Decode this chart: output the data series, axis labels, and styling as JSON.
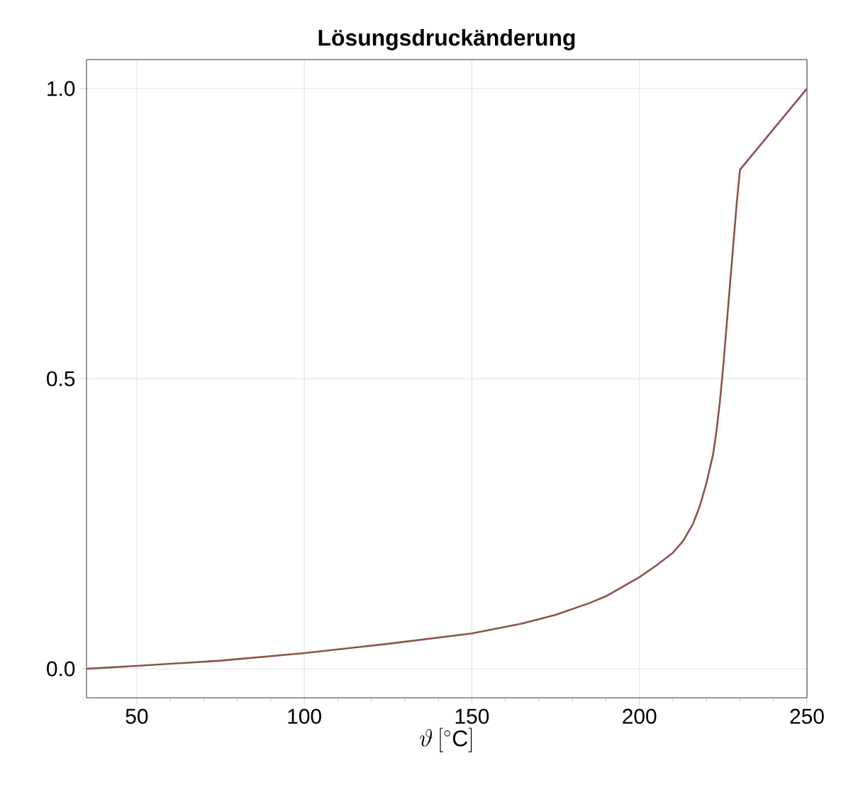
{
  "chart_data": {
    "type": "line",
    "title": "Lösungsdruckänderung",
    "xlabel": "\\vartheta\\,[^\\circ\\mathrm{C}]",
    "x": [
      35,
      50,
      75,
      100,
      125,
      150,
      165,
      175,
      185,
      190,
      200,
      205,
      210,
      213,
      216,
      218,
      220,
      222,
      223,
      224,
      225,
      226,
      227,
      228,
      229,
      230,
      250
    ],
    "series": [
      {
        "color": "#8c5449",
        "values": [
          0,
          0.005,
          0.014,
          0.027,
          0.043,
          0.061,
          0.078,
          0.093,
          0.113,
          0.125,
          0.158,
          0.178,
          0.2,
          0.22,
          0.25,
          0.28,
          0.32,
          0.37,
          0.41,
          0.46,
          0.52,
          0.59,
          0.66,
          0.73,
          0.8,
          0.86,
          1.0
        ]
      }
    ],
    "xlim": [
      35,
      250
    ],
    "ylim": [
      -0.05,
      1.05
    ],
    "xticks": [
      50,
      100,
      150,
      200,
      250
    ],
    "yticks": [
      {
        "value": 0,
        "label": "0.0"
      },
      {
        "value": 0.5,
        "label": "0.5"
      },
      {
        "value": 1,
        "label": "1.0"
      }
    ],
    "grid": true,
    "line_style": "solid"
  }
}
